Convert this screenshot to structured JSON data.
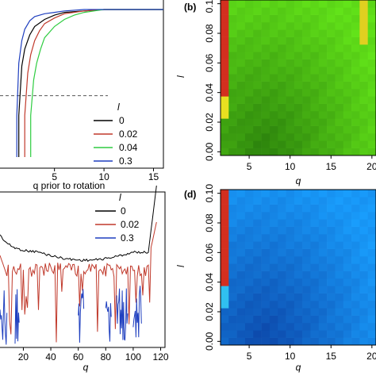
{
  "chart_data": [
    {
      "type": "line",
      "panel": "a",
      "xlabel": "q prior to rotation",
      "xticks": [
        5,
        10,
        15
      ],
      "xlim": [
        -0.5,
        16
      ],
      "ylim": [
        0,
        1
      ],
      "legend_title": "l",
      "legend_position": "bottom-right",
      "reference_line": {
        "y": 0.39,
        "style": "dashed"
      },
      "series": [
        {
          "name": "0",
          "color": "#000000",
          "x": [
            1.4,
            1.7,
            2,
            2.5,
            3,
            4,
            5,
            6,
            8,
            10,
            16
          ],
          "y": [
            0.25,
            0.6,
            0.72,
            0.82,
            0.88,
            0.93,
            0.96,
            0.98,
            0.99,
            1.0,
            1.0
          ]
        },
        {
          "name": "0.02",
          "color": "#c0392b",
          "x": [
            2.0,
            2.3,
            2.6,
            3,
            3.5,
            4,
            5,
            6,
            8,
            10,
            16
          ],
          "y": [
            0.25,
            0.55,
            0.68,
            0.78,
            0.85,
            0.9,
            0.94,
            0.97,
            0.99,
            1.0,
            1.0
          ]
        },
        {
          "name": "0.04",
          "color": "#2ecc40",
          "x": [
            2.6,
            2.9,
            3.2,
            3.6,
            4,
            5,
            6,
            7,
            8,
            10,
            16
          ],
          "y": [
            0.25,
            0.5,
            0.62,
            0.72,
            0.8,
            0.88,
            0.93,
            0.96,
            0.98,
            1.0,
            1.0
          ]
        },
        {
          "name": "0.3",
          "color": "#1f3fbf",
          "x": [
            1.2,
            1.4,
            1.7,
            2,
            2.5,
            3,
            4,
            5,
            6,
            8,
            16
          ],
          "y": [
            0.25,
            0.62,
            0.78,
            0.86,
            0.92,
            0.95,
            0.97,
            0.98,
            0.99,
            1.0,
            1.0
          ]
        }
      ]
    },
    {
      "type": "heatmap",
      "panel": "b",
      "label": "(b)",
      "xlabel": "q",
      "ylabel": "l",
      "xticks": [
        5,
        10,
        15,
        20
      ],
      "yticks": [
        "0.00",
        "0.02",
        "0.04",
        "0.06",
        "0.08",
        "0.10"
      ],
      "xlim": [
        1.5,
        20.5
      ],
      "ylim": [
        -0.0025,
        0.1025
      ],
      "colormap": "green",
      "highlights": [
        {
          "q": 2,
          "l_from": 0.04,
          "l_to": 0.1,
          "color": "#d32f1f"
        },
        {
          "q": 2,
          "l_from": 0.025,
          "l_to": 0.035,
          "color": "#e8e020"
        },
        {
          "q": 19,
          "l_from": 0.075,
          "l_to": 0.1,
          "color": "#e0d020"
        }
      ]
    },
    {
      "type": "line",
      "panel": "c",
      "xlabel": "q",
      "xticks": [
        20,
        40,
        60,
        80,
        100,
        120
      ],
      "xlim": [
        3,
        122
      ],
      "ylim": [
        0,
        1
      ],
      "legend_title": "l",
      "legend_position": "top-right",
      "series": [
        {
          "name": "0",
          "color": "#000000"
        },
        {
          "name": "0.02",
          "color": "#c0392b"
        },
        {
          "name": "0.3",
          "color": "#1f3fbf"
        }
      ]
    },
    {
      "type": "heatmap",
      "panel": "d",
      "label": "(d)",
      "xlabel": "q",
      "ylabel": "l",
      "xticks": [
        5,
        10,
        15,
        20
      ],
      "yticks": [
        "0.00",
        "0.02",
        "0.04",
        "0.06",
        "0.08",
        "0.10"
      ],
      "xlim": [
        1.5,
        20.5
      ],
      "ylim": [
        -0.0025,
        0.1025
      ],
      "colormap": "blue",
      "highlights": [
        {
          "q": 2,
          "l_from": 0.04,
          "l_to": 0.1,
          "color": "#d32f1f"
        },
        {
          "q": 2,
          "l_from": 0.025,
          "l_to": 0.035,
          "color": "#30c0f0"
        }
      ]
    }
  ]
}
